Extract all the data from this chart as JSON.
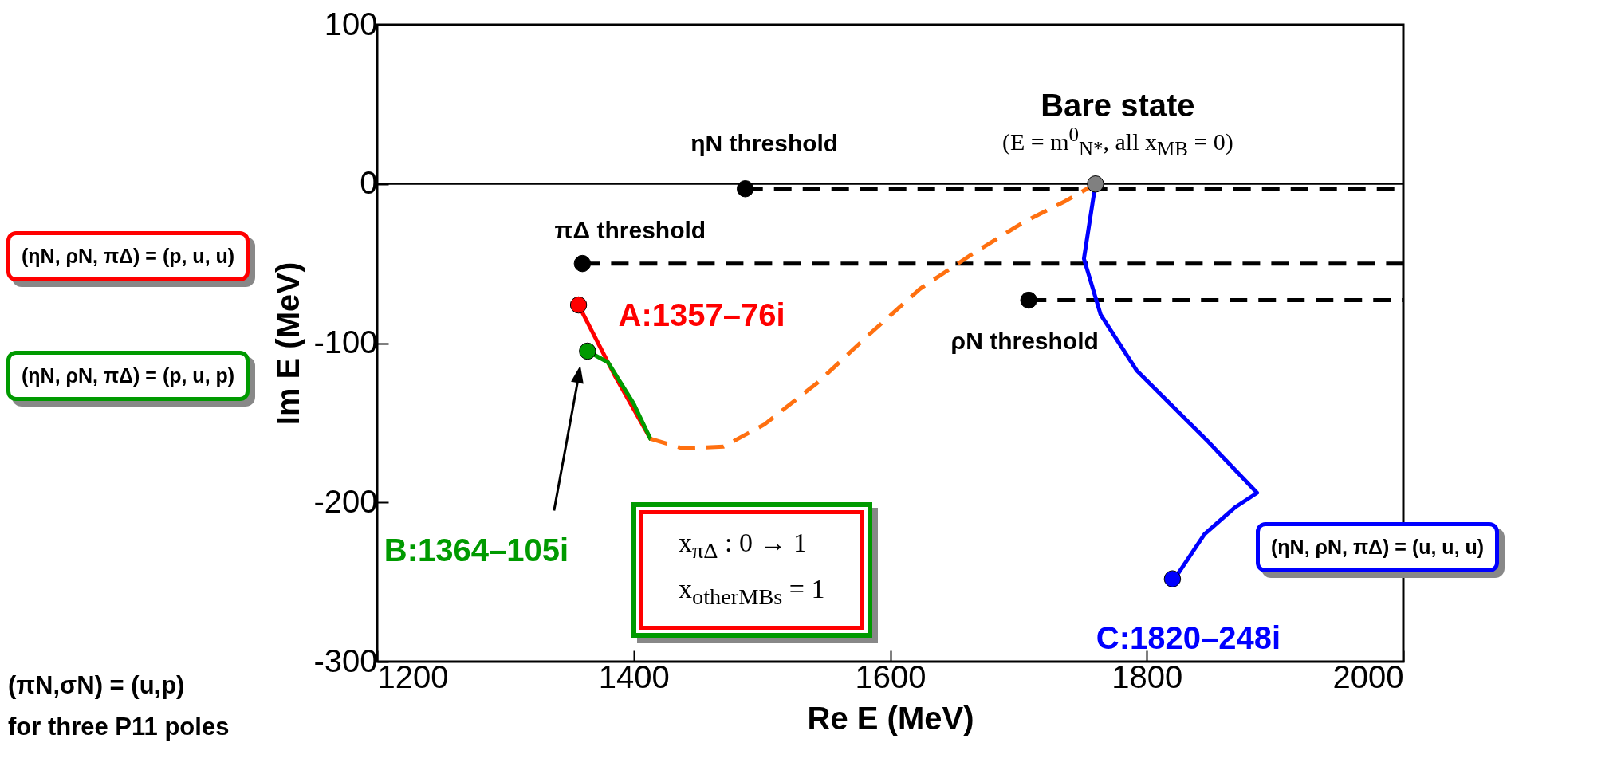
{
  "chart_data": {
    "type": "line",
    "xlabel": "Re E (MeV)",
    "ylabel": "Im E (MeV)",
    "xlim": [
      1200,
      2000
    ],
    "ylim": [
      -300,
      100
    ],
    "xticks": [
      1200,
      1400,
      1600,
      1800,
      2000
    ],
    "yticks": [
      -300,
      -200,
      -100,
      0,
      100
    ],
    "grid": false,
    "line_style": "solid",
    "ref_lines": [
      {
        "axis": "y",
        "value": 0,
        "color": "#000000"
      }
    ],
    "series": [
      {
        "type": "line",
        "line_style": "dashed",
        "color": "#000000",
        "x": [
          1487,
          2000
        ],
        "values": [
          -3,
          -3
        ]
      },
      {
        "type": "line",
        "line_style": "dashed",
        "color": "#000000",
        "x": [
          1360,
          2000
        ],
        "values": [
          -50,
          -50
        ]
      },
      {
        "type": "line",
        "line_style": "dashed",
        "color": "#000000",
        "x": [
          1708,
          2000
        ],
        "values": [
          -73,
          -73
        ]
      },
      {
        "name": "A:1357–76i",
        "color": "#ff0000",
        "x": [
          1357,
          1385,
          1413
        ],
        "values": [
          -76,
          -120,
          -160
        ]
      },
      {
        "name": "B:1364–105i",
        "color": "#009a00",
        "x": [
          1364,
          1380,
          1400,
          1413
        ],
        "values": [
          -105,
          -112,
          -138,
          -160
        ]
      },
      {
        "line_style": "dashed",
        "color": "#ff7010",
        "x": [
          1413,
          1438,
          1470,
          1502,
          1543,
          1583,
          1623,
          1664,
          1704,
          1736,
          1760
        ],
        "values": [
          -160,
          -166,
          -165,
          -151,
          -125,
          -95,
          -66,
          -44,
          -24,
          -11,
          0
        ]
      },
      {
        "name": "C:1820–248i",
        "color": "#0000ff",
        "x": [
          1820,
          1825,
          1845,
          1869,
          1886,
          1848,
          1792,
          1764,
          1751,
          1760
        ],
        "values": [
          -248,
          -244,
          -220,
          -203,
          -194,
          -162,
          -117,
          -82,
          -47,
          0
        ]
      },
      {
        "type": "scatter",
        "color": "#000000",
        "x": [
          1487,
          1360,
          1708
        ],
        "values": [
          -3,
          -50,
          -73
        ]
      },
      {
        "type": "scatter",
        "color": "#ff0000",
        "x": [
          1357
        ],
        "values": [
          -76
        ]
      },
      {
        "type": "scatter",
        "color": "#009a00",
        "x": [
          1364
        ],
        "values": [
          -105
        ]
      },
      {
        "type": "scatter",
        "color": "#0000ff",
        "x": [
          1820
        ],
        "values": [
          -248
        ]
      },
      {
        "type": "scatter",
        "color": "#808080",
        "x": [
          1760
        ],
        "values": [
          0
        ]
      }
    ],
    "annotations": [
      {
        "text": "Bare state",
        "x": 1760,
        "y": 0
      },
      {
        "text": "(E = m$^{0}$$_{N*}$, all x$_{MB}$ = 0)",
        "x": 1760,
        "y": 0
      },
      {
        "text": "ηN threshold",
        "x": 1487,
        "y": -3
      },
      {
        "text": "πΔ threshold",
        "x": 1360,
        "y": -50
      },
      {
        "text": "ρN threshold",
        "x": 1708,
        "y": -73
      },
      "(ηN, ρN, πΔ)  = (p, u, u)",
      "(ηN, ρN, πΔ)  = (p, u, p)",
      "(ηN, ρN, πΔ)  = (u, u, u)",
      "x$_{πΔ}$ : 0 → 1",
      "x$_{otherMBs}$ = 1",
      "(πN,σN) = (u,p)",
      "for three P11 poles"
    ]
  }
}
